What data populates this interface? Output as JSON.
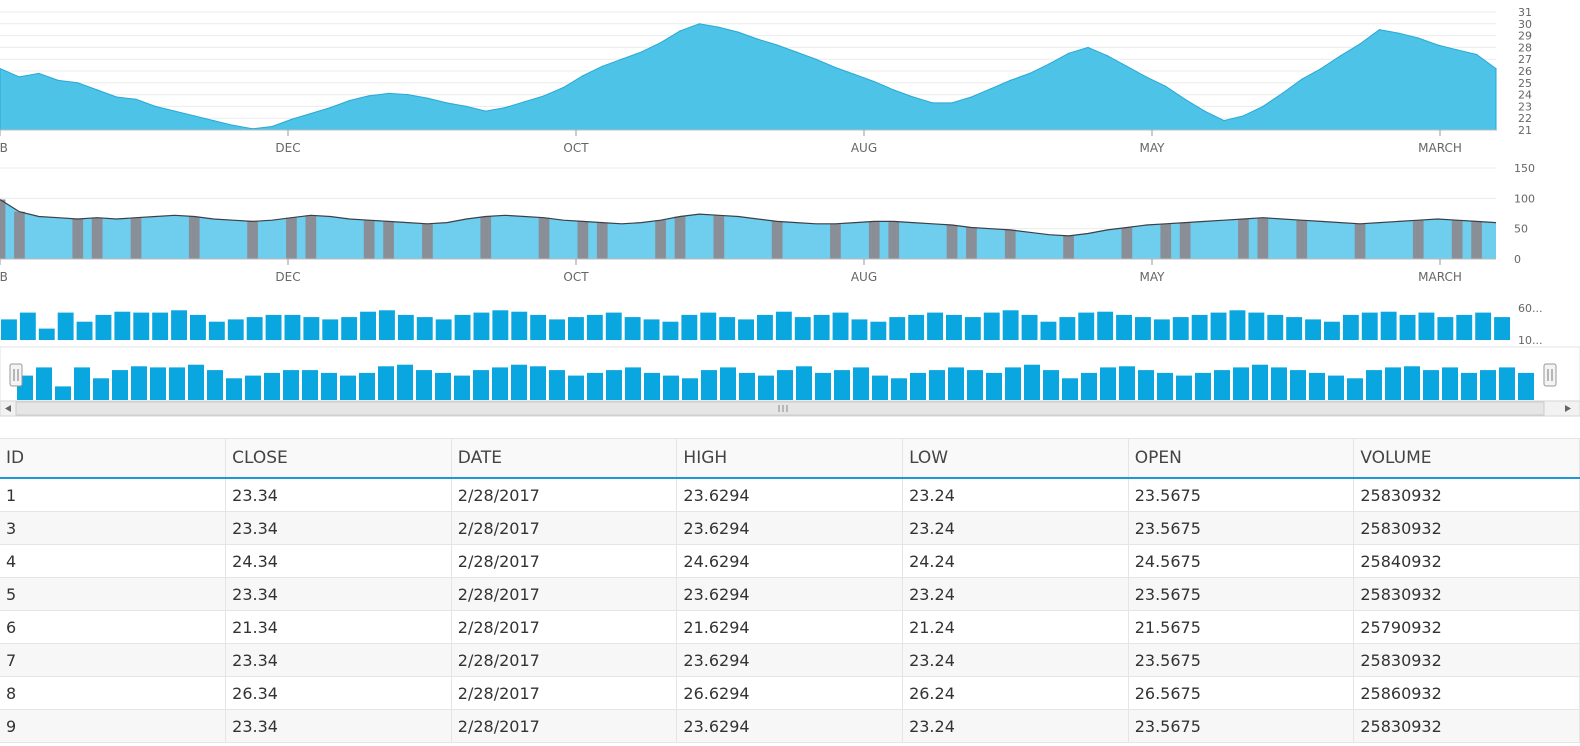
{
  "chart_data": [
    {
      "type": "area",
      "name": "price",
      "ylim": [
        21,
        31
      ],
      "yticks": [
        "31",
        "30",
        "29",
        "28",
        "27",
        "26",
        "25",
        "24",
        "23",
        "22",
        "21"
      ],
      "xticks": [
        "EB",
        "DEC",
        "OCT",
        "AUG",
        "MAY",
        "MARCH"
      ],
      "color": "#4cc3e7",
      "values": [
        26.2,
        25.5,
        25.8,
        25.2,
        25.0,
        24.4,
        23.8,
        23.6,
        23.0,
        22.6,
        22.2,
        21.8,
        21.4,
        21.1,
        21.3,
        21.9,
        22.4,
        22.9,
        23.5,
        23.9,
        24.1,
        24.0,
        23.7,
        23.3,
        23.0,
        22.6,
        22.9,
        23.4,
        23.9,
        24.6,
        25.6,
        26.4,
        27.0,
        27.6,
        28.4,
        29.4,
        30.0,
        29.7,
        29.3,
        28.7,
        28.2,
        27.6,
        27.0,
        26.3,
        25.7,
        25.1,
        24.4,
        23.8,
        23.3,
        23.3,
        23.8,
        24.5,
        25.2,
        25.8,
        26.6,
        27.5,
        28.0,
        27.3,
        26.4,
        25.5,
        24.7,
        23.6,
        22.6,
        21.8,
        22.2,
        23.0,
        24.1,
        25.3,
        26.2,
        27.3,
        28.3,
        29.5,
        29.2,
        28.8,
        28.2,
        27.8,
        27.4,
        26.2
      ]
    },
    {
      "type": "area",
      "name": "indicator",
      "ylim": [
        0,
        150
      ],
      "yticks": [
        "150",
        "100",
        "50",
        "0"
      ],
      "xticks": [
        "EB",
        "DEC",
        "OCT",
        "AUG",
        "MAY",
        "MARCH"
      ],
      "color": "#6fcdee",
      "shade_color": "#8a8f97",
      "values": [
        98,
        78,
        70,
        68,
        66,
        68,
        66,
        68,
        70,
        72,
        70,
        66,
        64,
        62,
        64,
        68,
        72,
        70,
        66,
        64,
        62,
        60,
        58,
        60,
        66,
        70,
        72,
        70,
        68,
        64,
        62,
        60,
        58,
        60,
        64,
        70,
        74,
        72,
        70,
        66,
        62,
        60,
        58,
        58,
        60,
        62,
        62,
        60,
        58,
        56,
        52,
        50,
        48,
        44,
        40,
        38,
        42,
        48,
        52,
        56,
        58,
        60,
        62,
        64,
        66,
        68,
        66,
        64,
        62,
        60,
        58,
        60,
        62,
        64,
        66,
        64,
        62,
        60
      ]
    },
    {
      "type": "bar",
      "name": "volume",
      "yticks": [
        "60...",
        "10..."
      ],
      "color": "#0aa6e0",
      "values": [
        45,
        60,
        25,
        60,
        40,
        55,
        62,
        60,
        60,
        65,
        55,
        40,
        45,
        50,
        55,
        55,
        50,
        45,
        50,
        62,
        65,
        55,
        50,
        45,
        55,
        60,
        65,
        62,
        55,
        45,
        50,
        55,
        60,
        50,
        45,
        40,
        55,
        60,
        50,
        45,
        55,
        62,
        50,
        55,
        60,
        45,
        40,
        50,
        55,
        60,
        55,
        50,
        60,
        65,
        55,
        40,
        50,
        60,
        62,
        55,
        50,
        45,
        50,
        55,
        60,
        65,
        60,
        55,
        50,
        45,
        40,
        55,
        60,
        62,
        55,
        60,
        50,
        55,
        60,
        50
      ]
    },
    {
      "type": "bar",
      "name": "navigator",
      "color": "#0aa6e0",
      "values": [
        45,
        60,
        25,
        60,
        40,
        55,
        62,
        60,
        60,
        65,
        55,
        40,
        45,
        50,
        55,
        55,
        50,
        45,
        50,
        62,
        65,
        55,
        50,
        45,
        55,
        60,
        65,
        62,
        55,
        45,
        50,
        55,
        60,
        50,
        45,
        40,
        55,
        60,
        50,
        45,
        55,
        62,
        50,
        55,
        60,
        45,
        40,
        50,
        55,
        60,
        55,
        50,
        60,
        65,
        55,
        40,
        50,
        60,
        62,
        55,
        50,
        45,
        50,
        55,
        60,
        65,
        60,
        55,
        50,
        45,
        40,
        55,
        60,
        62,
        55,
        60,
        50,
        55,
        60,
        50
      ]
    }
  ],
  "grid": {
    "columns": [
      "ID",
      "CLOSE",
      "DATE",
      "HIGH",
      "LOW",
      "OPEN",
      "VOLUME"
    ],
    "rows": [
      [
        "1",
        "23.34",
        "2/28/2017",
        "23.6294",
        "23.24",
        "23.5675",
        "25830932"
      ],
      [
        "3",
        "23.34",
        "2/28/2017",
        "23.6294",
        "23.24",
        "23.5675",
        "25830932"
      ],
      [
        "4",
        "24.34",
        "2/28/2017",
        "24.6294",
        "24.24",
        "24.5675",
        "25840932"
      ],
      [
        "5",
        "23.34",
        "2/28/2017",
        "23.6294",
        "23.24",
        "23.5675",
        "25830932"
      ],
      [
        "6",
        "21.34",
        "2/28/2017",
        "21.6294",
        "21.24",
        "21.5675",
        "25790932"
      ],
      [
        "7",
        "23.34",
        "2/28/2017",
        "23.6294",
        "23.24",
        "23.5675",
        "25830932"
      ],
      [
        "8",
        "26.34",
        "2/28/2017",
        "26.6294",
        "26.24",
        "26.5675",
        "25860932"
      ],
      [
        "9",
        "23.34",
        "2/28/2017",
        "23.6294",
        "23.24",
        "23.5675",
        "25830932"
      ]
    ]
  }
}
